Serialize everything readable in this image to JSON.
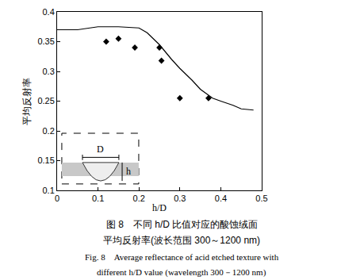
{
  "chart_data": {
    "type": "line",
    "caption": [
      "图 8　不同 h/D 比值对应的酸蚀绒面",
      "平均反射率(波长范围 300～1200 nm)",
      "Fig. 8　Average reflectance of acid etched texture with",
      "different h/D value (wavelength 300－1200 nm)"
    ],
    "x_label": "h/D",
    "y_label": "平均反射率",
    "series": [
      {
        "type": "line",
        "color": "#000000",
        "line_style": "solid",
        "x": [
          0,
          0.05,
          0.1,
          0.15,
          0.2,
          0.22,
          0.25,
          0.28,
          0.3,
          0.33,
          0.35,
          0.38,
          0.4,
          0.43,
          0.45,
          0.48
        ],
        "values": [
          0.37,
          0.37,
          0.375,
          0.375,
          0.373,
          0.365,
          0.345,
          0.32,
          0.305,
          0.285,
          0.27,
          0.255,
          0.25,
          0.243,
          0.237,
          0.235
        ]
      },
      {
        "type": "scatter",
        "color": "#000000",
        "marker": "diamond",
        "x": [
          0.12,
          0.15,
          0.19,
          0.25,
          0.255,
          0.3,
          0.37
        ],
        "values": [
          0.35,
          0.355,
          0.34,
          0.34,
          0.318,
          0.255,
          0.255
        ]
      }
    ],
    "annotations": [
      {
        "text": "D"
      },
      {
        "text": "h"
      }
    ],
    "xlim": [
      0,
      0.5
    ],
    "xticks": [
      0,
      0.1,
      0.2,
      0.3,
      0.4,
      0.5
    ],
    "ylim": [
      0.1,
      0.4
    ],
    "yticks": [
      0.1,
      0.15,
      0.2,
      0.25,
      0.3,
      0.35,
      0.4
    ],
    "grid": false
  }
}
